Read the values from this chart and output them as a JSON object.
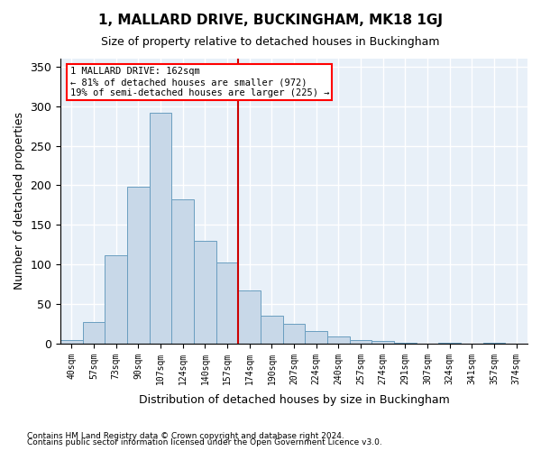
{
  "title": "1, MALLARD DRIVE, BUCKINGHAM, MK18 1GJ",
  "subtitle": "Size of property relative to detached houses in Buckingham",
  "xlabel": "Distribution of detached houses by size in Buckingham",
  "ylabel": "Number of detached properties",
  "footnote1": "Contains HM Land Registry data © Crown copyright and database right 2024.",
  "footnote2": "Contains public sector information licensed under the Open Government Licence v3.0.",
  "annotation_line1": "1 MALLARD DRIVE: 162sqm",
  "annotation_line2": "← 81% of detached houses are smaller (972)",
  "annotation_line3": "19% of semi-detached houses are larger (225) →",
  "bar_color": "#c8d8e8",
  "bar_edge_color": "#6a9ec0",
  "vline_color": "#cc0000",
  "background_color": "#e8f0f8",
  "grid_color": "#ffffff",
  "categories": [
    "40sqm",
    "57sqm",
    "73sqm",
    "90sqm",
    "107sqm",
    "124sqm",
    "140sqm",
    "157sqm",
    "174sqm",
    "190sqm",
    "207sqm",
    "224sqm",
    "240sqm",
    "257sqm",
    "274sqm",
    "291sqm",
    "307sqm",
    "324sqm",
    "341sqm",
    "357sqm",
    "374sqm"
  ],
  "values": [
    5,
    27,
    112,
    198,
    292,
    182,
    130,
    103,
    67,
    35,
    25,
    16,
    9,
    4,
    3,
    1,
    0,
    1,
    0,
    1,
    0
  ],
  "vline_index": 7.5,
  "ylim": [
    0,
    360
  ],
  "yticks": [
    0,
    50,
    100,
    150,
    200,
    250,
    300,
    350
  ]
}
